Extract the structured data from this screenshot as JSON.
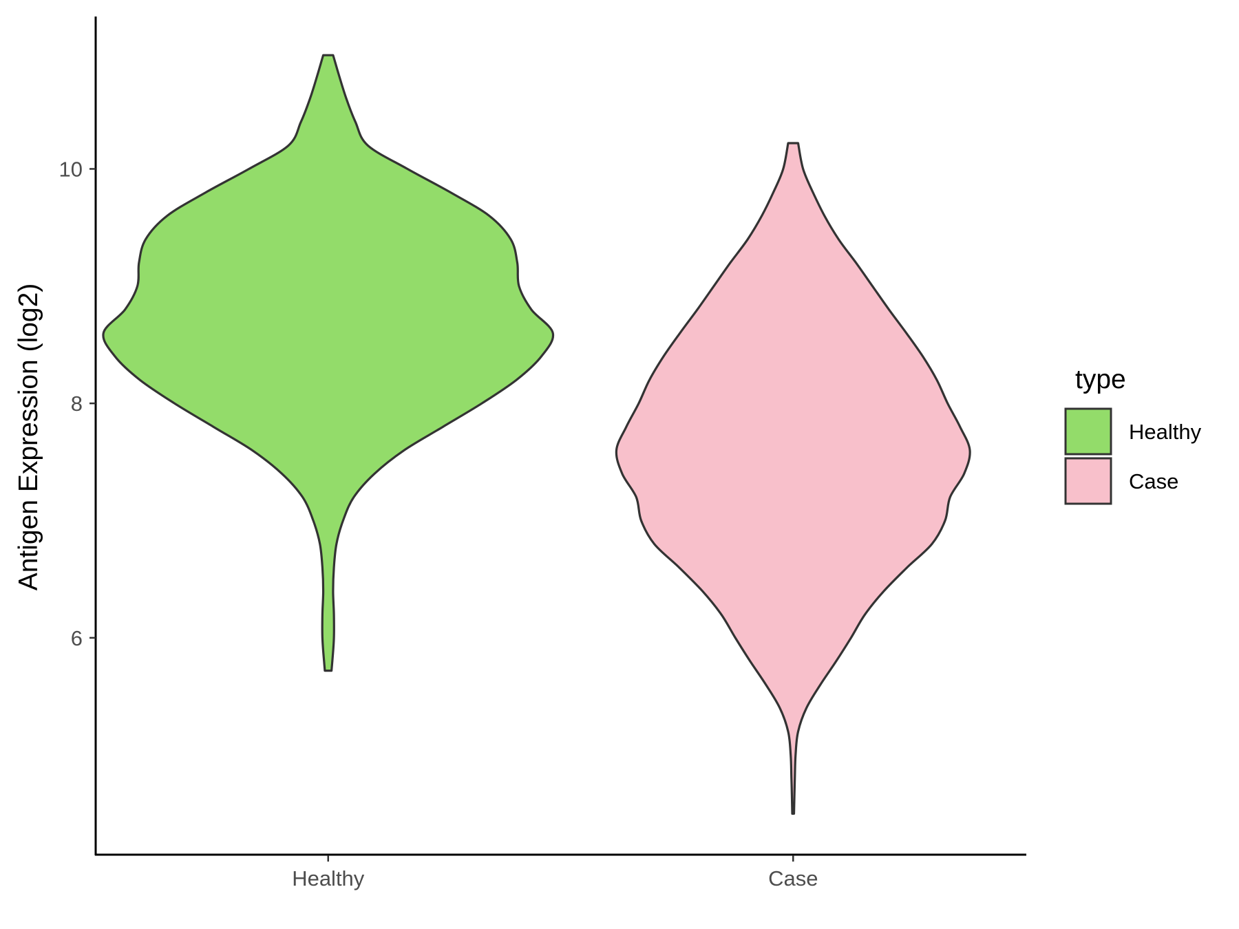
{
  "chart_data": {
    "type": "violin",
    "title": "",
    "xlabel": "",
    "ylabel": "Antigen Expression (log2)",
    "ylim": [
      4.15,
      11.3
    ],
    "yticks": [
      6,
      8,
      10
    ],
    "categories": [
      "Healthy",
      "Case"
    ],
    "grid": false,
    "legend": {
      "title": "type",
      "position": "right",
      "entries": [
        {
          "label": "Healthy",
          "color": "#93dc6a"
        },
        {
          "label": "Case",
          "color": "#f8c0cb"
        }
      ]
    },
    "series": [
      {
        "name": "Healthy",
        "category": "Healthy",
        "color": "#93dc6a",
        "min": 5.72,
        "max": 10.97,
        "density": [
          [
            10.97,
            0.06
          ],
          [
            10.8,
            0.13
          ],
          [
            10.6,
            0.22
          ],
          [
            10.4,
            0.33
          ],
          [
            10.2,
            0.48
          ],
          [
            10.0,
            0.96
          ],
          [
            9.8,
            1.48
          ],
          [
            9.6,
            1.95
          ],
          [
            9.4,
            2.21
          ],
          [
            9.2,
            2.29
          ],
          [
            9.0,
            2.31
          ],
          [
            8.8,
            2.46
          ],
          [
            8.6,
            2.72
          ],
          [
            8.4,
            2.58
          ],
          [
            8.2,
            2.28
          ],
          [
            8.0,
            1.86
          ],
          [
            7.8,
            1.39
          ],
          [
            7.6,
            0.92
          ],
          [
            7.4,
            0.56
          ],
          [
            7.2,
            0.31
          ],
          [
            7.0,
            0.18
          ],
          [
            6.8,
            0.1
          ],
          [
            6.6,
            0.07
          ],
          [
            6.4,
            0.06
          ],
          [
            6.2,
            0.07
          ],
          [
            6.0,
            0.07
          ],
          [
            5.8,
            0.05
          ],
          [
            5.72,
            0.04
          ]
        ]
      },
      {
        "name": "Case",
        "category": "Case",
        "color": "#f8c0cb",
        "min": 4.5,
        "max": 10.22,
        "density": [
          [
            10.22,
            0.06
          ],
          [
            10.0,
            0.12
          ],
          [
            9.8,
            0.24
          ],
          [
            9.6,
            0.38
          ],
          [
            9.4,
            0.55
          ],
          [
            9.2,
            0.76
          ],
          [
            9.0,
            0.96
          ],
          [
            8.8,
            1.16
          ],
          [
            8.6,
            1.37
          ],
          [
            8.4,
            1.57
          ],
          [
            8.2,
            1.74
          ],
          [
            8.0,
            1.87
          ],
          [
            7.8,
            2.02
          ],
          [
            7.6,
            2.14
          ],
          [
            7.4,
            2.07
          ],
          [
            7.2,
            1.9
          ],
          [
            7.0,
            1.84
          ],
          [
            6.8,
            1.68
          ],
          [
            6.6,
            1.38
          ],
          [
            6.4,
            1.1
          ],
          [
            6.2,
            0.87
          ],
          [
            6.0,
            0.7
          ],
          [
            5.8,
            0.52
          ],
          [
            5.6,
            0.33
          ],
          [
            5.4,
            0.16
          ],
          [
            5.2,
            0.06
          ],
          [
            5.0,
            0.03
          ],
          [
            4.8,
            0.02
          ],
          [
            4.5,
            0.01
          ]
        ]
      }
    ]
  }
}
